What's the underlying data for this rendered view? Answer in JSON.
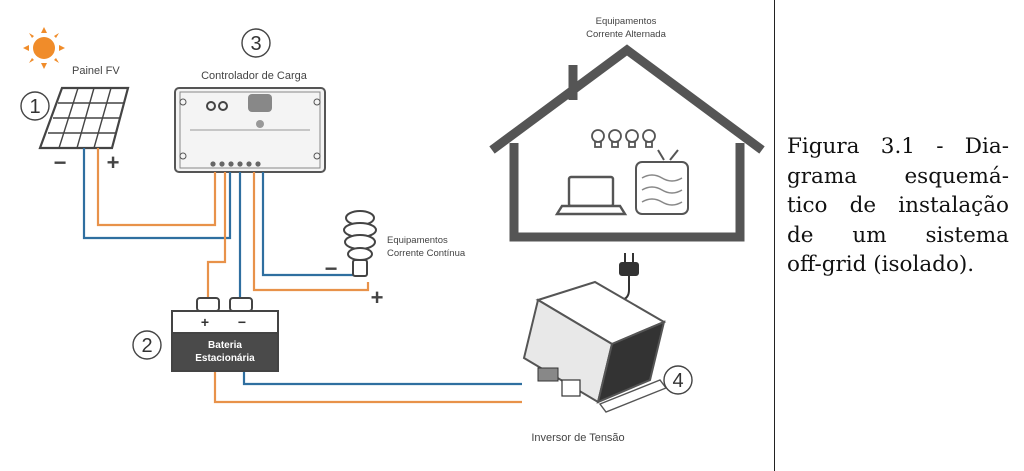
{
  "labels": {
    "painel": "Painel FV",
    "controlador": "Controlador de Carga",
    "eq_ca_1": "Equipamentos",
    "eq_ca_2": "Corrente Alternada",
    "eq_cc_1": "Equipamentos",
    "eq_cc_2": "Corrente Contínua",
    "bateria_1": "Bateria",
    "bateria_2": "Estacionária",
    "inversor": "Inversor de Tensão"
  },
  "numbers": {
    "n1": "1",
    "n2": "2",
    "n3": "3",
    "n4": "4"
  },
  "signs": {
    "minus": "−",
    "plus": "+"
  },
  "caption": {
    "lines": [
      [
        "Figura",
        "3.1",
        "-",
        "Dia-"
      ],
      [
        "grama",
        "esquemá-"
      ],
      [
        "tico",
        "de",
        "instalação"
      ],
      [
        "de",
        "um",
        "sistema"
      ],
      [
        "off-grid",
        "(isolado)."
      ]
    ]
  },
  "colors": {
    "positive_wire": "#e8924a",
    "negative_wire": "#2f6fa0",
    "sun": "#f08c2a",
    "icons": "#555555"
  }
}
